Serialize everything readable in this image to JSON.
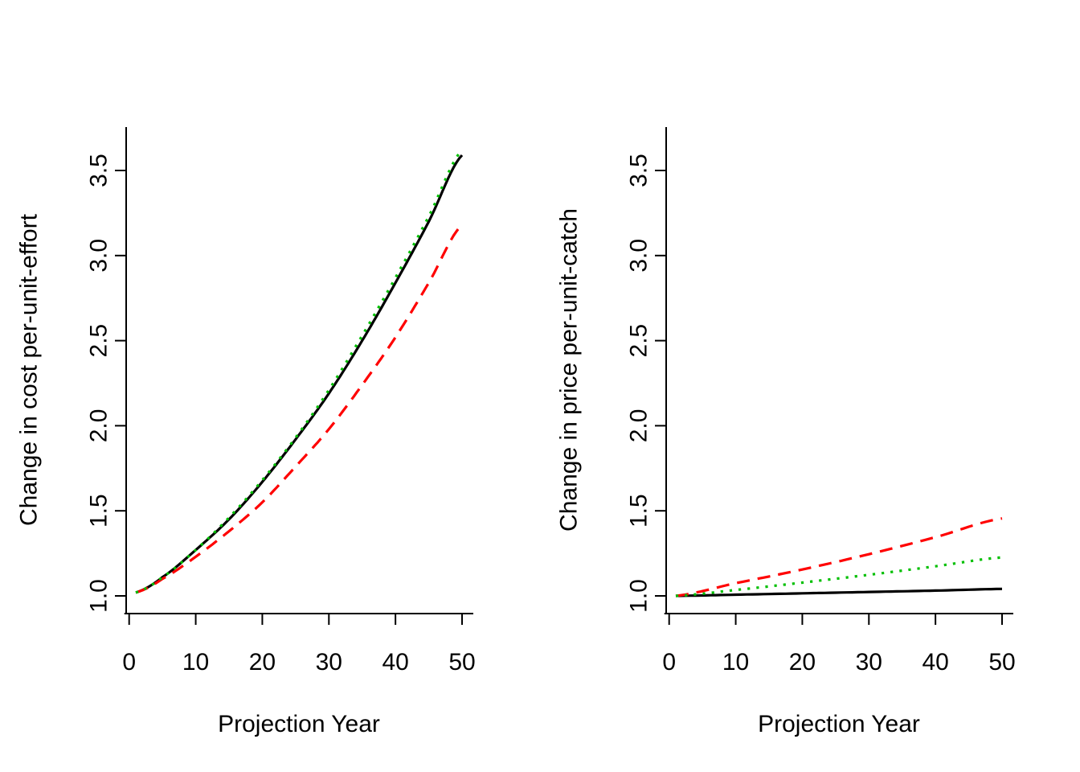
{
  "chart_data": [
    {
      "type": "line",
      "xlabel": "Projection Year",
      "ylabel": "Change in cost per-unit-effort",
      "xlim": [
        1,
        50
      ],
      "ylim": [
        0.9,
        3.75
      ],
      "xticks": [
        0,
        10,
        20,
        30,
        40,
        50
      ],
      "yticks": [
        1.0,
        1.5,
        2.0,
        2.5,
        3.0,
        3.5
      ],
      "ytick_labels": [
        "1.0",
        "1.5",
        "2.0",
        "2.5",
        "3.0",
        "3.5"
      ],
      "x": [
        1,
        5,
        10,
        15,
        20,
        25,
        30,
        35,
        40,
        45,
        50
      ],
      "series": [
        {
          "style": "solid",
          "color": "#000000",
          "values": [
            1.02,
            1.11,
            1.27,
            1.45,
            1.67,
            1.92,
            2.19,
            2.5,
            2.84,
            3.2,
            3.59
          ]
        },
        {
          "style": "dashed",
          "color": "#ff0000",
          "values": [
            1.02,
            1.1,
            1.23,
            1.38,
            1.55,
            1.76,
            1.98,
            2.24,
            2.52,
            2.84,
            3.18
          ]
        },
        {
          "style": "dotted",
          "color": "#00bf00",
          "values": [
            1.02,
            1.11,
            1.27,
            1.46,
            1.68,
            1.93,
            2.21,
            2.53,
            2.87,
            3.23,
            3.62
          ]
        }
      ]
    },
    {
      "type": "line",
      "xlabel": "Projection Year",
      "ylabel": "Change in price per-unit-catch",
      "xlim": [
        1,
        50
      ],
      "ylim": [
        0.9,
        3.75
      ],
      "xticks": [
        0,
        10,
        20,
        30,
        40,
        50
      ],
      "yticks": [
        1.0,
        1.5,
        2.0,
        2.5,
        3.0,
        3.5
      ],
      "ytick_labels": [
        "1.0",
        "1.5",
        "2.0",
        "2.5",
        "3.0",
        "3.5"
      ],
      "x": [
        1,
        10,
        20,
        30,
        40,
        50
      ],
      "series": [
        {
          "style": "solid",
          "color": "#000000",
          "values": [
            1.0,
            1.007,
            1.015,
            1.023,
            1.031,
            1.041
          ]
        },
        {
          "style": "dashed",
          "color": "#ff0000",
          "values": [
            1.0,
            1.075,
            1.155,
            1.245,
            1.345,
            1.455
          ]
        },
        {
          "style": "dotted",
          "color": "#00bf00",
          "values": [
            1.0,
            1.035,
            1.078,
            1.124,
            1.174,
            1.226
          ]
        }
      ]
    }
  ]
}
